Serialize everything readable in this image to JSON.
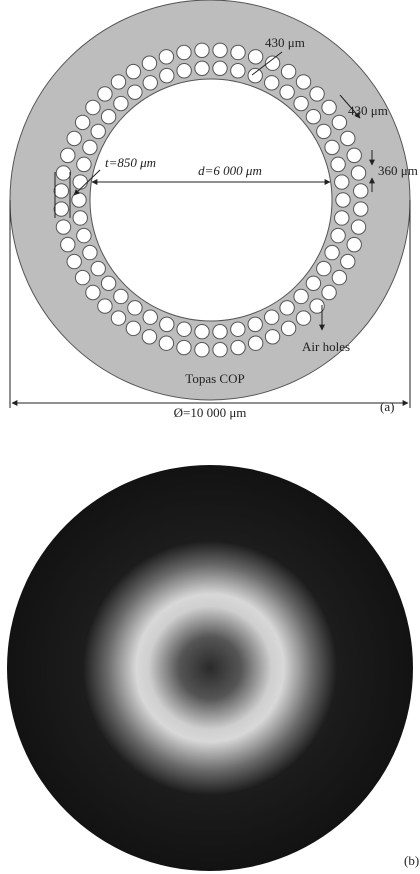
{
  "figure_a": {
    "hole_pitch_label": "430 μm",
    "hole_gap_label": "430 μm",
    "hole_diameter_label": "360 μm",
    "thickness_label": "t=850 μm",
    "core_label": "d=6 000 μm",
    "air_holes_label": "Air holes",
    "material_label": "Topas COP",
    "outer_label": "Ø=10 000 μm",
    "panel_label": "(a)"
  },
  "figure_b": {
    "panel_label": "(b)"
  }
}
